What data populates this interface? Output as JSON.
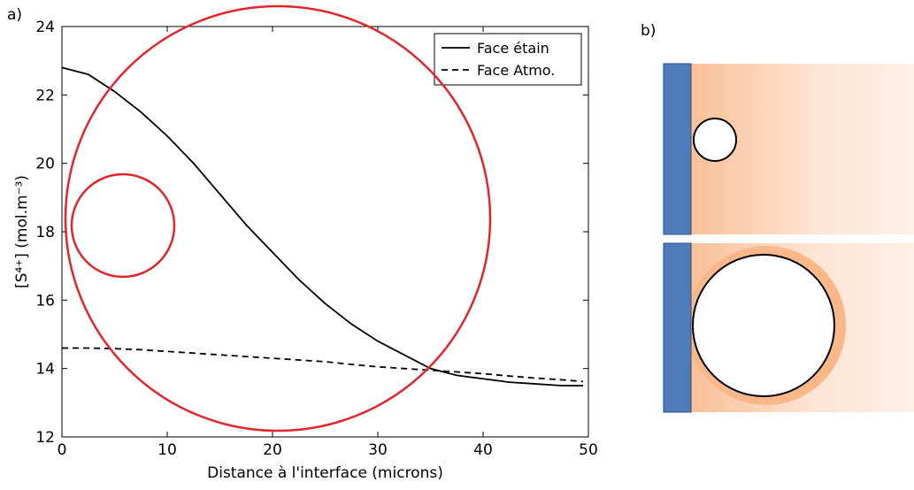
{
  "chart_data": {
    "type": "line",
    "panel_label": "a)",
    "x_label": "Distance à l'interface (microns)",
    "y_label": "[S⁴⁺] (mol.m⁻³)",
    "x": [
      0,
      2.5,
      5,
      7.5,
      10,
      12.5,
      15,
      17.5,
      20,
      22.5,
      25,
      27.5,
      30,
      32.5,
      35,
      37.5,
      40,
      42.5,
      45,
      47.5,
      49.5
    ],
    "series": [
      {
        "name": "Face étain",
        "color": "#000000",
        "dash": false,
        "values": [
          22.8,
          22.6,
          22.1,
          21.5,
          20.8,
          20.0,
          19.1,
          18.2,
          17.4,
          16.6,
          15.9,
          15.3,
          14.8,
          14.4,
          14.0,
          13.8,
          13.7,
          13.6,
          13.55,
          13.5,
          13.5
        ]
      },
      {
        "name": "Face Atmo.",
        "color": "#000000",
        "dash": true,
        "values": [
          14.6,
          14.6,
          14.58,
          14.55,
          14.5,
          14.45,
          14.4,
          14.35,
          14.3,
          14.25,
          14.2,
          14.12,
          14.05,
          14.0,
          13.95,
          13.9,
          13.85,
          13.78,
          13.72,
          13.67,
          13.62
        ]
      }
    ],
    "xlim": [
      0,
      50
    ],
    "xticks": [
      0,
      10,
      20,
      30,
      40,
      50
    ],
    "ylim": [
      12,
      24
    ],
    "yticks": [
      12,
      14,
      16,
      18,
      20,
      22,
      24
    ],
    "legend": "upper right"
  },
  "diagram": {
    "panel_label": "b)"
  }
}
